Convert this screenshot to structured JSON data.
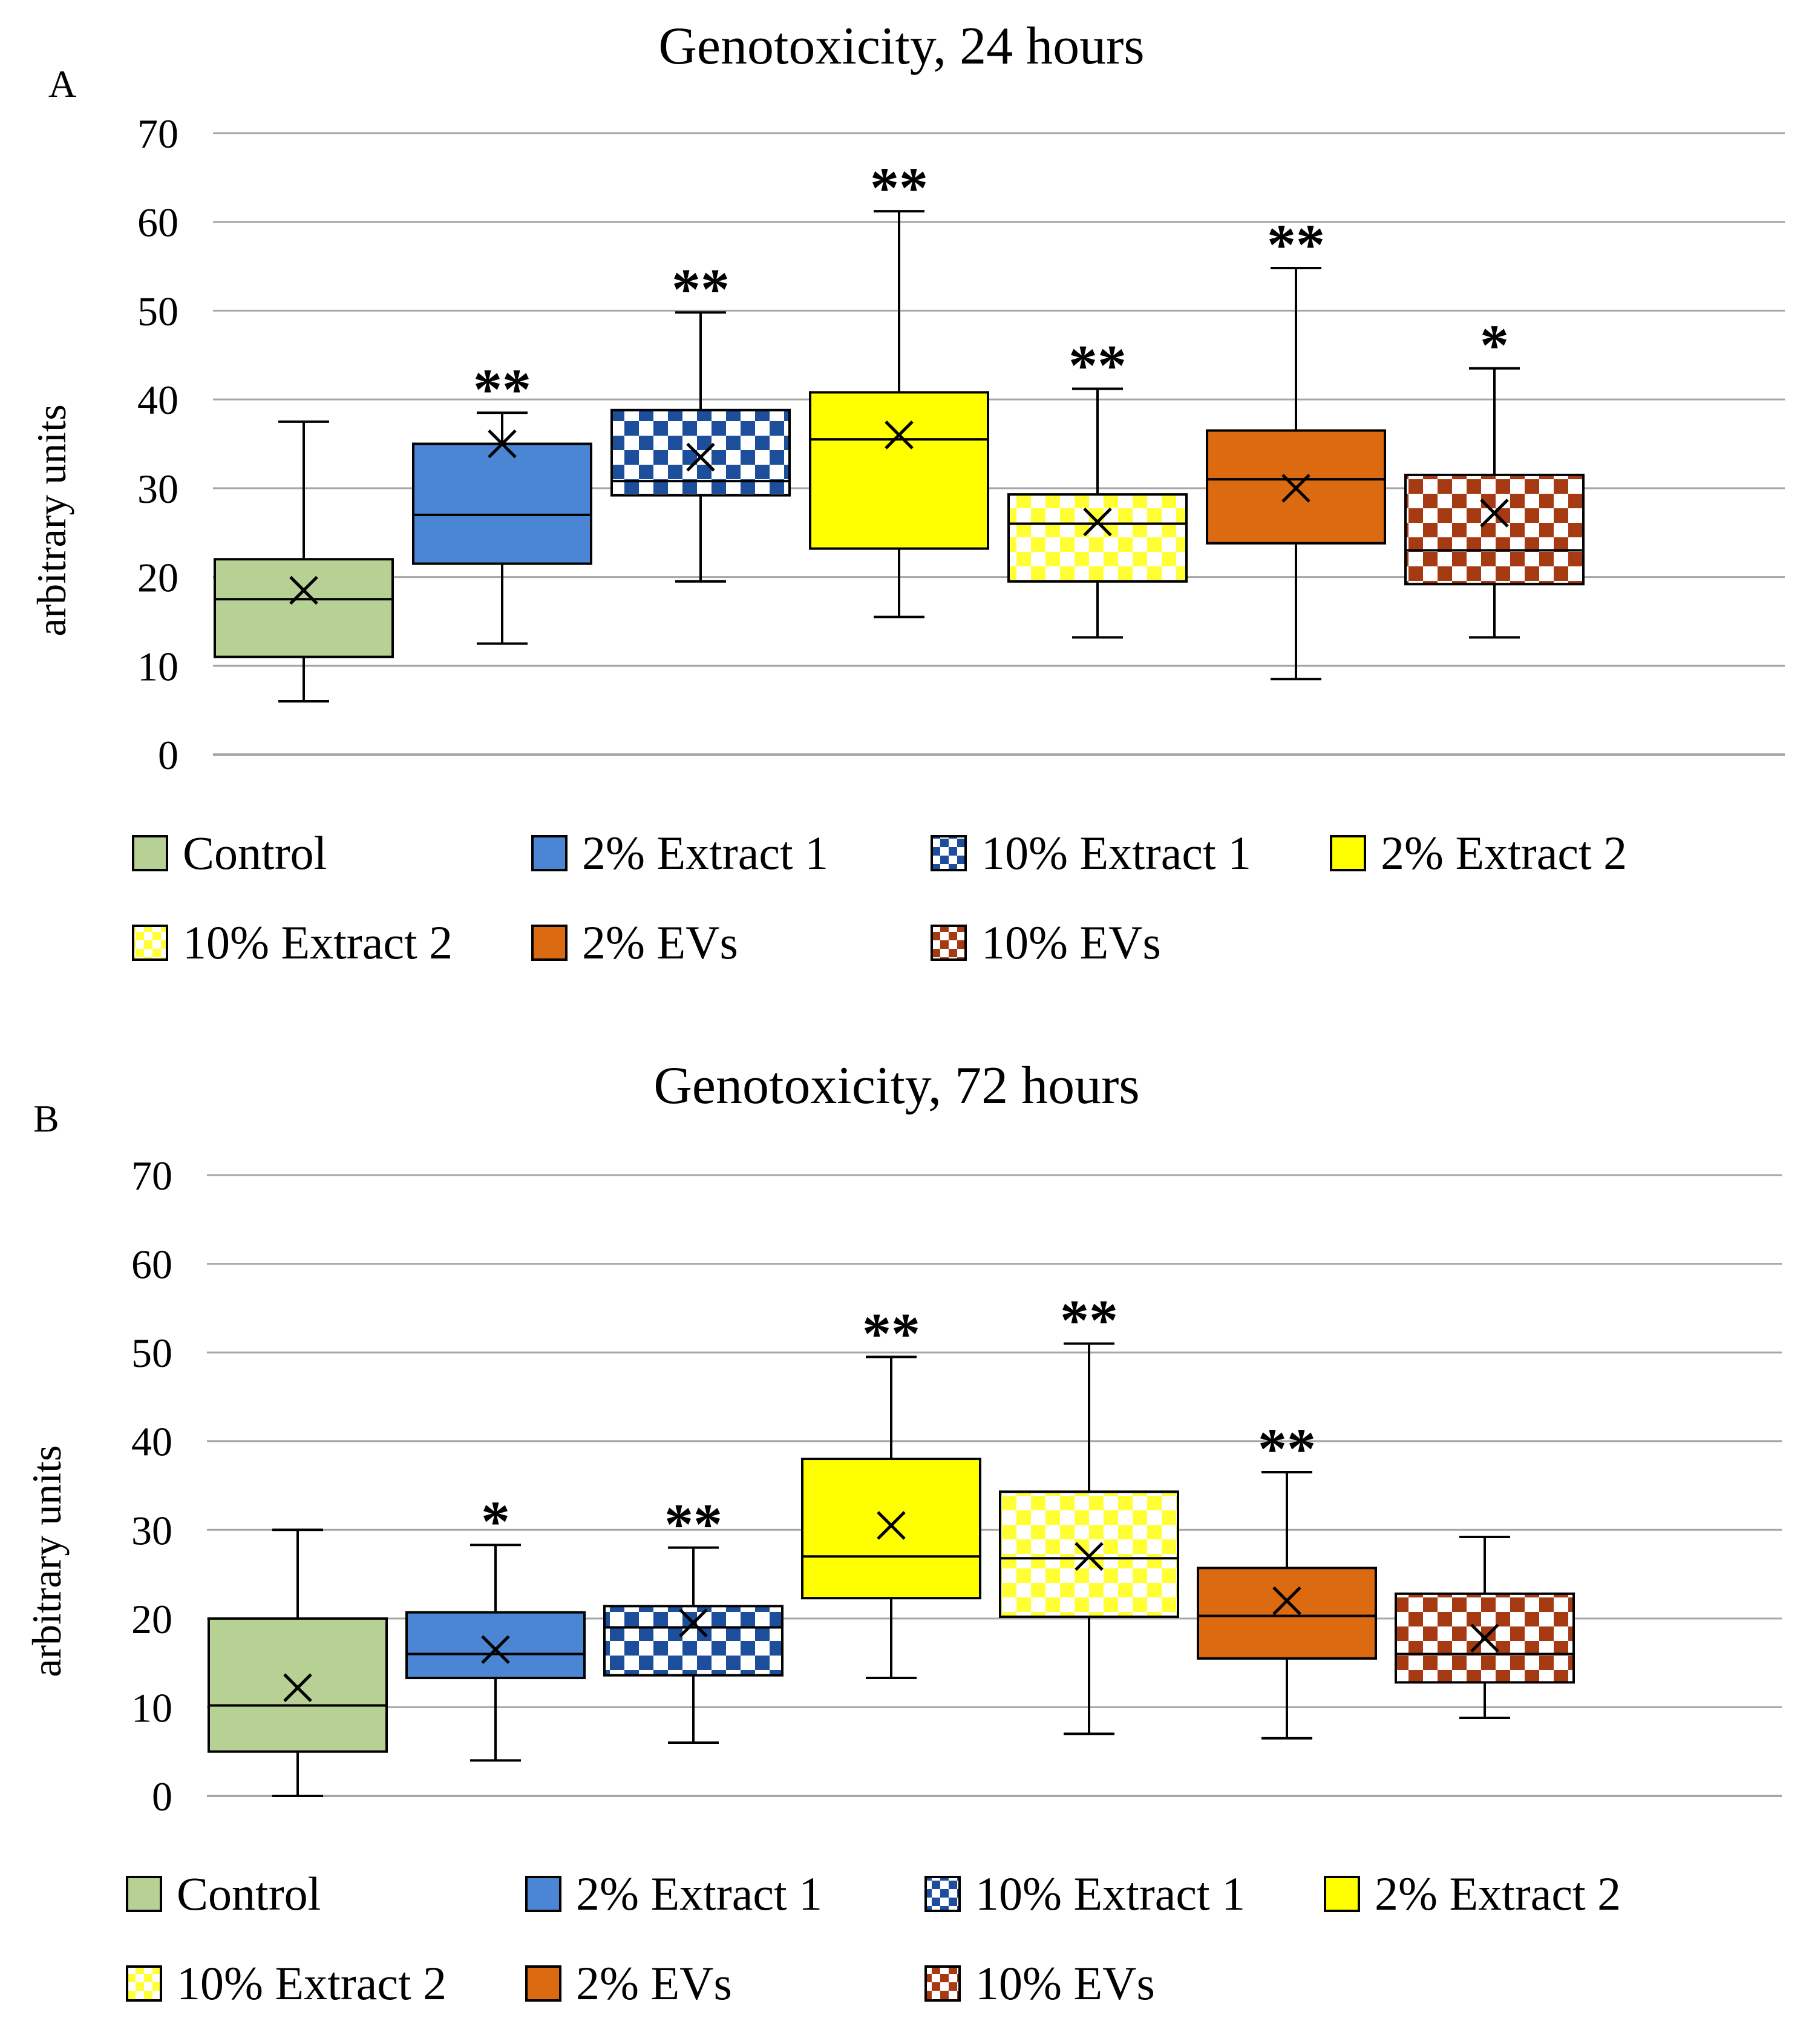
{
  "legend_order": [
    "Control",
    "2% Extract 1",
    "10% Extract 1",
    "2% Extract 2",
    "10% Extract 2",
    "2% EVs",
    "10% EVs"
  ],
  "groups": {
    "Control": {
      "color": "#b7d094",
      "pattern": "solid",
      "secondary": null
    },
    "2% Extract 1": {
      "color": "#4a86d4",
      "pattern": "solid",
      "secondary": null
    },
    "10% Extract 1": {
      "color": "#1d4e9c",
      "pattern": "checker",
      "secondary": "#ffffff"
    },
    "2% Extract 2": {
      "color": "#ffff00",
      "pattern": "solid",
      "secondary": null
    },
    "10% Extract 2": {
      "color": "#ffff33",
      "pattern": "checker",
      "secondary": "#ffffff"
    },
    "2% EVs": {
      "color": "#dc6a10",
      "pattern": "solid",
      "secondary": null
    },
    "10% EVs": {
      "color": "#a63a13",
      "pattern": "checker",
      "secondary": "#ffffff"
    }
  },
  "chart_data": [
    {
      "panel": "A",
      "type": "boxplot",
      "title": "Genotoxicity, 24 hours",
      "ylabel": "arbitrary units",
      "ylim": [
        0,
        70
      ],
      "yticks": [
        0,
        10,
        20,
        30,
        40,
        50,
        60,
        70
      ],
      "grid": true,
      "legend_position": "bottom",
      "series": [
        {
          "name": "Control",
          "min": 6,
          "q1": 11,
          "median": 17.5,
          "q3": 22,
          "max": 37.5,
          "mean": 18.5,
          "sig": ""
        },
        {
          "name": "2% Extract 1",
          "min": 12.5,
          "q1": 21.5,
          "median": 27,
          "q3": 35,
          "max": 38.5,
          "mean": 35,
          "sig": "**"
        },
        {
          "name": "10% Extract 1",
          "min": 19.5,
          "q1": 29.2,
          "median": 30.8,
          "q3": 38.8,
          "max": 49.8,
          "mean": 33.5,
          "sig": "**"
        },
        {
          "name": "2% Extract 2",
          "min": 15.5,
          "q1": 23.2,
          "median": 35.5,
          "q3": 40.8,
          "max": 61.2,
          "mean": 36,
          "sig": "**"
        },
        {
          "name": "10% Extract 2",
          "min": 13.2,
          "q1": 19.5,
          "median": 26,
          "q3": 29.3,
          "max": 41.2,
          "mean": 26.2,
          "sig": "**"
        },
        {
          "name": "2% EVs",
          "min": 8.5,
          "q1": 23.8,
          "median": 31,
          "q3": 36.5,
          "max": 54.8,
          "mean": 30,
          "sig": "**"
        },
        {
          "name": "10% EVs",
          "min": 13.2,
          "q1": 19.2,
          "median": 23,
          "q3": 31.5,
          "max": 43.5,
          "mean": 27.2,
          "sig": "*"
        }
      ]
    },
    {
      "panel": "B",
      "type": "boxplot",
      "title": "Genotoxicity, 72 hours",
      "ylabel": "arbitrary units",
      "ylim": [
        0,
        70
      ],
      "yticks": [
        0,
        10,
        20,
        30,
        40,
        50,
        60,
        70
      ],
      "grid": true,
      "legend_position": "bottom",
      "series": [
        {
          "name": "Control",
          "min": 0,
          "q1": 5,
          "median": 10.2,
          "q3": 20,
          "max": 30,
          "mean": 12.2,
          "sig": ""
        },
        {
          "name": "2% Extract 1",
          "min": 4,
          "q1": 13.3,
          "median": 16,
          "q3": 20.7,
          "max": 28.3,
          "mean": 16.5,
          "sig": "*"
        },
        {
          "name": "10% Extract 1",
          "min": 6,
          "q1": 13.6,
          "median": 19,
          "q3": 21.4,
          "max": 28,
          "mean": 19.5,
          "sig": "**"
        },
        {
          "name": "2% Extract 2",
          "min": 13.3,
          "q1": 22.3,
          "median": 27,
          "q3": 38,
          "max": 49.5,
          "mean": 30.5,
          "sig": "**"
        },
        {
          "name": "10% Extract 2",
          "min": 7,
          "q1": 20.2,
          "median": 26.8,
          "q3": 34.3,
          "max": 51,
          "mean": 27,
          "sig": "**"
        },
        {
          "name": "2% EVs",
          "min": 6.5,
          "q1": 15.5,
          "median": 20.3,
          "q3": 25.7,
          "max": 36.5,
          "mean": 22,
          "sig": "**"
        },
        {
          "name": "10% EVs",
          "min": 8.8,
          "q1": 12.8,
          "median": 16,
          "q3": 22.8,
          "max": 29.2,
          "mean": 17.8,
          "sig": ""
        }
      ]
    }
  ]
}
